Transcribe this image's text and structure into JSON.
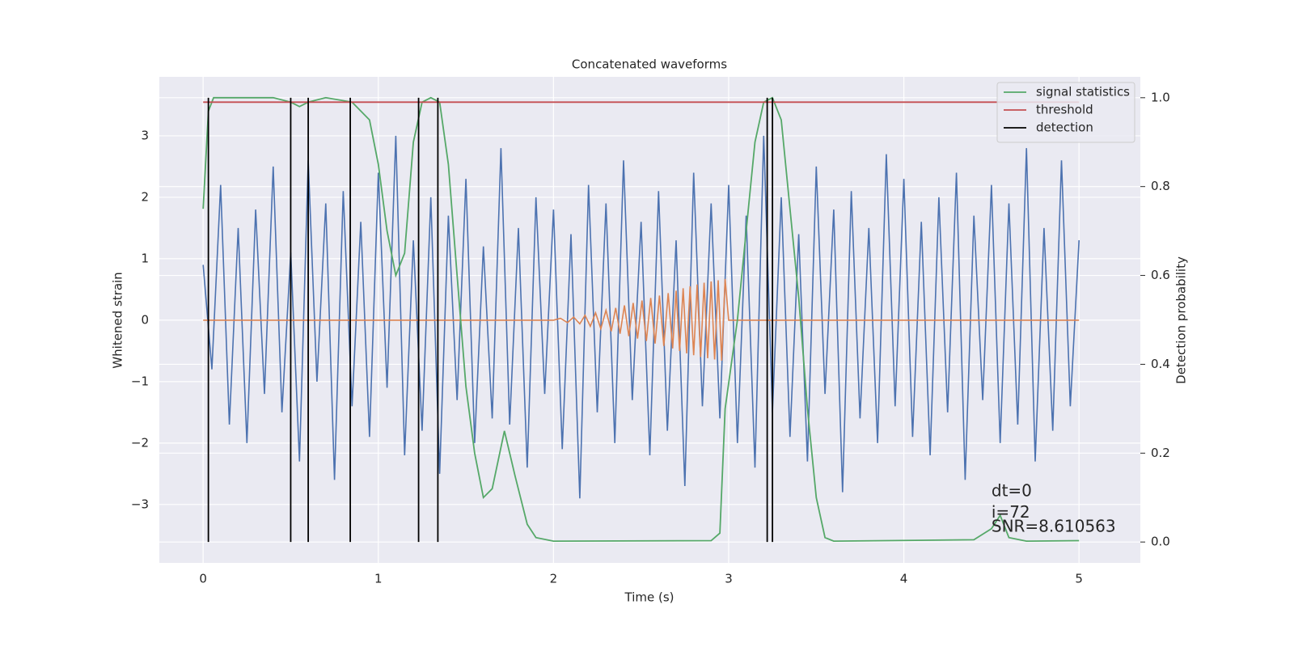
{
  "chart_data": {
    "type": "line",
    "title": "Concatenated waveforms",
    "xlabel": "Time (s)",
    "ylabel": "Whitened strain",
    "y2label": "Detection probability",
    "xlim": [
      -0.25,
      5.35
    ],
    "xticks": [
      0,
      1,
      2,
      3,
      4,
      5
    ],
    "ylim": [
      -3.95,
      3.96
    ],
    "yticks": [
      {
        "value": -3,
        "label": "−3"
      },
      {
        "value": -2,
        "label": "−2"
      },
      {
        "value": -1,
        "label": "−1"
      },
      0,
      1,
      2,
      3
    ],
    "y2lim": [
      -0.047,
      1.047
    ],
    "y2ticks": [
      {
        "value": 0,
        "label": "0.0"
      },
      0.2,
      0.4,
      0.6,
      0.8,
      {
        "value": 1,
        "label": "1.0"
      }
    ],
    "grid": true,
    "legend": "upper right",
    "series": [
      {
        "color": "#4c72b0",
        "x": [
          0,
          0.05,
          0.1,
          0.15,
          0.2,
          0.25,
          0.3,
          0.35,
          0.4,
          0.45,
          0.5,
          0.55,
          0.6,
          0.65,
          0.7,
          0.75,
          0.8,
          0.85,
          0.9,
          0.95,
          1.0,
          1.05,
          1.1,
          1.15,
          1.2,
          1.25,
          1.3,
          1.35,
          1.4,
          1.45,
          1.5,
          1.55,
          1.6,
          1.65,
          1.7,
          1.75,
          1.8,
          1.85,
          1.9,
          1.95,
          2.0,
          2.05,
          2.1,
          2.15,
          2.2,
          2.25,
          2.3,
          2.35,
          2.4,
          2.45,
          2.5,
          2.55,
          2.6,
          2.65,
          2.7,
          2.75,
          2.8,
          2.85,
          2.9,
          2.95,
          3.0,
          3.05,
          3.1,
          3.15,
          3.2,
          3.25,
          3.3,
          3.35,
          3.4,
          3.45,
          3.5,
          3.55,
          3.6,
          3.65,
          3.7,
          3.75,
          3.8,
          3.85,
          3.9,
          3.95,
          4.0,
          4.05,
          4.1,
          4.15,
          4.2,
          4.25,
          4.3,
          4.35,
          4.4,
          4.45,
          4.5,
          4.55,
          4.6,
          4.65,
          4.7,
          4.75,
          4.8,
          4.85,
          4.9,
          4.95,
          5.0
        ],
        "values": [
          0.9,
          -0.8,
          2.2,
          -1.7,
          1.5,
          -2.0,
          1.8,
          -1.2,
          2.5,
          -1.5,
          1.1,
          -2.3,
          2.6,
          -1.0,
          1.9,
          -2.6,
          2.1,
          -1.4,
          1.6,
          -1.9,
          2.4,
          -1.1,
          3.0,
          -2.2,
          1.3,
          -1.8,
          2.0,
          -2.5,
          1.7,
          -1.3,
          2.3,
          -2.0,
          1.2,
          -1.6,
          2.8,
          -1.7,
          1.5,
          -2.4,
          2.0,
          -1.2,
          1.8,
          -2.1,
          1.4,
          -2.9,
          2.2,
          -1.5,
          1.9,
          -2.0,
          2.6,
          -1.3,
          1.6,
          -2.2,
          2.1,
          -1.8,
          1.3,
          -2.7,
          2.4,
          -1.4,
          1.9,
          -1.6,
          2.2,
          -2.0,
          1.7,
          -2.4,
          3.0,
          -1.5,
          2.0,
          -1.9,
          1.4,
          -2.3,
          2.5,
          -1.2,
          1.8,
          -2.8,
          2.1,
          -1.6,
          1.5,
          -2.0,
          2.7,
          -1.4,
          2.3,
          -1.9,
          1.6,
          -2.2,
          2.0,
          -1.5,
          2.4,
          -2.6,
          1.7,
          -1.3,
          2.2,
          -2.0,
          1.9,
          -1.7,
          2.8,
          -2.3,
          1.5,
          -1.8,
          2.6,
          -1.4,
          1.3
        ]
      },
      {
        "color": "#dd8452",
        "x": [
          0,
          2.0,
          2.04,
          2.08,
          2.115,
          2.15,
          2.18,
          2.21,
          2.24,
          2.27,
          2.3,
          2.33,
          2.355,
          2.38,
          2.405,
          2.43,
          2.455,
          2.48,
          2.505,
          2.53,
          2.555,
          2.58,
          2.605,
          2.63,
          2.655,
          2.68,
          2.7,
          2.72,
          2.74,
          2.76,
          2.78,
          2.8,
          2.82,
          2.84,
          2.86,
          2.88,
          2.9,
          2.92,
          2.94,
          2.96,
          2.98,
          3.0,
          5
        ],
        "values": [
          0,
          0,
          0.03,
          -0.04,
          0.05,
          -0.06,
          0.08,
          -0.1,
          0.12,
          -0.14,
          0.16,
          -0.18,
          0.2,
          -0.22,
          0.24,
          -0.26,
          0.28,
          -0.3,
          0.32,
          -0.34,
          0.36,
          -0.38,
          0.4,
          -0.42,
          0.44,
          -0.46,
          0.48,
          -0.5,
          0.52,
          -0.54,
          0.55,
          -0.57,
          0.58,
          -0.6,
          0.61,
          -0.62,
          0.63,
          -0.64,
          0.65,
          -0.66,
          0.67,
          0,
          0
        ]
      },
      {
        "name": "signal statistics",
        "color": "#55a868",
        "axis": "y2",
        "x": [
          0,
          0.03,
          0.06,
          0.4,
          0.5,
          0.55,
          0.6,
          0.7,
          0.85,
          0.95,
          1.0,
          1.05,
          1.1,
          1.15,
          1.2,
          1.25,
          1.3,
          1.35,
          1.4,
          1.45,
          1.5,
          1.55,
          1.6,
          1.65,
          1.72,
          1.78,
          1.85,
          1.9,
          2.0,
          2.9,
          2.95,
          2.98,
          3.05,
          3.1,
          3.15,
          3.2,
          3.25,
          3.3,
          3.35,
          3.4,
          3.45,
          3.5,
          3.55,
          3.6,
          4.4,
          4.5,
          4.55,
          4.6,
          4.7,
          5.0
        ],
        "values": [
          0.75,
          0.97,
          1.0,
          1.0,
          0.99,
          0.98,
          0.99,
          1.0,
          0.99,
          0.95,
          0.85,
          0.7,
          0.6,
          0.65,
          0.9,
          0.99,
          1.0,
          0.99,
          0.85,
          0.6,
          0.35,
          0.2,
          0.1,
          0.12,
          0.25,
          0.15,
          0.04,
          0.01,
          0.002,
          0.003,
          0.02,
          0.3,
          0.5,
          0.7,
          0.9,
          0.99,
          1.0,
          0.95,
          0.75,
          0.55,
          0.3,
          0.1,
          0.01,
          0.002,
          0.005,
          0.03,
          0.06,
          0.01,
          0.002,
          0.003
        ]
      },
      {
        "name": "threshold",
        "color": "#c44e52",
        "axis": "y2",
        "x": [
          0,
          5
        ],
        "values": [
          0.99,
          0.99
        ]
      }
    ],
    "detections": {
      "name": "detection",
      "color": "#000000",
      "x": [
        0.03,
        0.5,
        0.6,
        0.84,
        1.23,
        1.34,
        3.22,
        3.25
      ],
      "ymin": 0,
      "ymax": 1
    },
    "annotations": [
      {
        "text": "dt=0",
        "x": 4.5,
        "y": -2.79
      },
      {
        "text": "i=72",
        "x": 4.5,
        "y": -3.14
      },
      {
        "text": "SNR=8.610563",
        "x": 4.5,
        "y": -3.37
      }
    ]
  }
}
